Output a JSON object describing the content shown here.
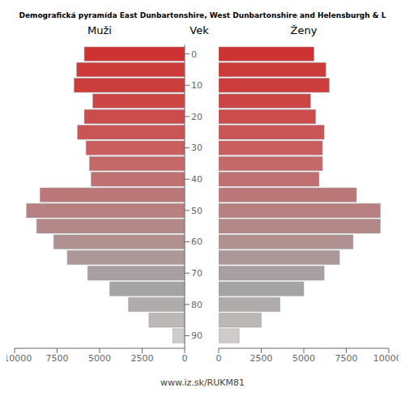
{
  "chart_data": {
    "type": "bar",
    "orientation": "horizontal",
    "title": "Demografická pyramída East Dunbartonshire, West Dunbartonshire and Helensburgh & L",
    "ylabel": "Vek",
    "annotations": [
      "www.iz.sk/RUKM81"
    ],
    "y": [
      0,
      5,
      10,
      15,
      20,
      25,
      30,
      35,
      40,
      45,
      50,
      55,
      60,
      65,
      70,
      75,
      80,
      85,
      90
    ],
    "series": [
      {
        "name": "Muži",
        "values": [
          5900,
          6350,
          6500,
          5400,
          5900,
          6300,
          5800,
          5600,
          5500,
          8500,
          9300,
          8700,
          7700,
          6900,
          5700,
          4400,
          3300,
          2100,
          700
        ]
      },
      {
        "name": "Ženy",
        "values": [
          5600,
          6300,
          6500,
          5400,
          5700,
          6200,
          6100,
          6100,
          5900,
          8100,
          9500,
          9500,
          7900,
          7100,
          6200,
          5000,
          3600,
          2500,
          1200
        ]
      }
    ],
    "colors": [
      "#cd3333",
      "#cc3a3a",
      "#cc3e3e",
      "#cb4545",
      "#ca4c4c",
      "#c95555",
      "#c85e5e",
      "#c56868",
      "#c07070",
      "#bc7878",
      "#b88080",
      "#b48888",
      "#b09090",
      "#ac9898",
      "#a8a0a0",
      "#a4a4a4",
      "#b0acac",
      "#bcb8b8",
      "#d0cccc"
    ],
    "xlim": [
      0,
      10000
    ],
    "xticks": [
      0,
      2500,
      5000,
      7500,
      10000
    ],
    "ylim": [
      -3,
      94
    ],
    "yticks": [
      0,
      10,
      20,
      30,
      40,
      50,
      60,
      70,
      80,
      90
    ],
    "grid": false
  }
}
